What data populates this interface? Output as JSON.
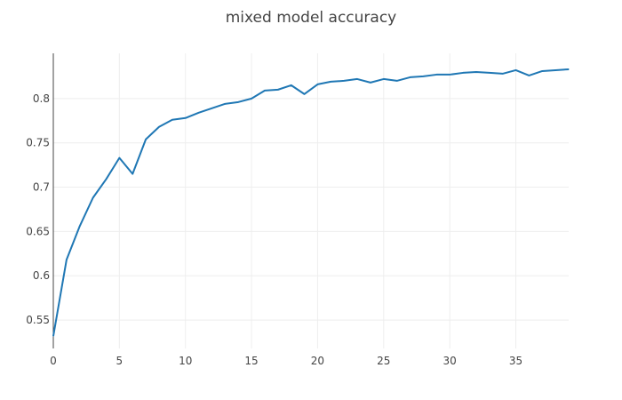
{
  "chart_data": {
    "type": "line",
    "title": "mixed model accuracy",
    "xlabel": "",
    "ylabel": "",
    "grid": true,
    "legend": "none",
    "xlim": [
      0,
      39
    ],
    "ylim": [
      0.518,
      0.851
    ],
    "x_ticks": [
      0,
      5,
      10,
      15,
      20,
      25,
      30,
      35
    ],
    "y_ticks": [
      0.55,
      0.6,
      0.65,
      0.7,
      0.75,
      0.8
    ],
    "x_tick_labels": [
      "0",
      "5",
      "10",
      "15",
      "20",
      "25",
      "30",
      "35"
    ],
    "y_tick_labels": [
      "0.55",
      "0.6",
      "0.65",
      "0.7",
      "0.75",
      "0.8"
    ],
    "line_color": "#1f77b4",
    "series": [
      {
        "x": [
          0,
          1,
          2,
          3,
          4,
          5,
          6,
          7,
          8,
          9,
          10,
          11,
          12,
          13,
          14,
          15,
          16,
          17,
          18,
          19,
          20,
          21,
          22,
          23,
          24,
          25,
          26,
          27,
          28,
          29,
          30,
          31,
          32,
          33,
          34,
          35,
          36,
          37,
          38,
          39
        ],
        "values": [
          0.532,
          0.618,
          0.656,
          0.688,
          0.709,
          0.733,
          0.715,
          0.754,
          0.768,
          0.776,
          0.778,
          0.784,
          0.789,
          0.794,
          0.796,
          0.8,
          0.809,
          0.81,
          0.815,
          0.805,
          0.816,
          0.819,
          0.82,
          0.822,
          0.818,
          0.822,
          0.82,
          0.824,
          0.825,
          0.827,
          0.827,
          0.829,
          0.83,
          0.829,
          0.828,
          0.832,
          0.826,
          0.831,
          0.832,
          0.833
        ]
      }
    ]
  }
}
